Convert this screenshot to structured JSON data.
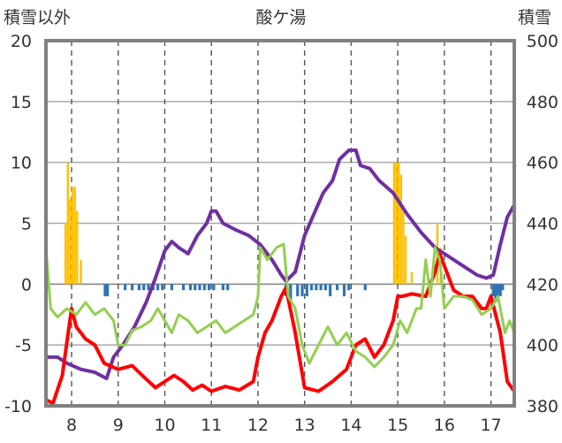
{
  "chart_data": {
    "type": "line",
    "title": "酸ケ湯",
    "y_left_label": "積雪以外",
    "y_right_label": "積雪",
    "ylim_left": [
      -10,
      20
    ],
    "ylim_right": [
      380,
      500
    ],
    "xlim": [
      7.45,
      17.5
    ],
    "x_ticks": [
      8,
      9,
      10,
      11,
      12,
      13,
      14,
      15,
      16,
      17
    ],
    "y_ticks_left": [
      -10,
      -5,
      0,
      5,
      10,
      15,
      20
    ],
    "y_ticks_right": [
      380,
      400,
      420,
      440,
      460,
      480,
      500
    ],
    "grid": "dashed vertical lines at each day, solid horizontal lines",
    "colors": {
      "snow_depth": "#7030A0",
      "temperature_a": "#FF0000",
      "temperature_b": "#92D050",
      "precipitation": "#FFC000",
      "negative_bars": "#2E75B6",
      "grid": "#AAAAAA",
      "frame": "#808080"
    },
    "series": [
      {
        "key": "snow_depth",
        "axis": "right",
        "style": "line",
        "points": [
          [
            7.45,
            396
          ],
          [
            7.7,
            396
          ],
          [
            7.9,
            394
          ],
          [
            8.2,
            392
          ],
          [
            8.5,
            391
          ],
          [
            8.75,
            389
          ],
          [
            8.9,
            396
          ],
          [
            9.1,
            400
          ],
          [
            9.35,
            406
          ],
          [
            9.6,
            414
          ],
          [
            9.8,
            422
          ],
          [
            10.0,
            431
          ],
          [
            10.15,
            434
          ],
          [
            10.3,
            432
          ],
          [
            10.5,
            430
          ],
          [
            10.7,
            436
          ],
          [
            10.9,
            440
          ],
          [
            11.0,
            444
          ],
          [
            11.1,
            444
          ],
          [
            11.25,
            440
          ],
          [
            11.5,
            438
          ],
          [
            11.8,
            436
          ],
          [
            12.05,
            433
          ],
          [
            12.3,
            428
          ],
          [
            12.5,
            423
          ],
          [
            12.6,
            421
          ],
          [
            12.8,
            424
          ],
          [
            13.0,
            436
          ],
          [
            13.2,
            443
          ],
          [
            13.4,
            450
          ],
          [
            13.6,
            454
          ],
          [
            13.75,
            461
          ],
          [
            13.95,
            464
          ],
          [
            14.1,
            464
          ],
          [
            14.2,
            459
          ],
          [
            14.4,
            458
          ],
          [
            14.6,
            454
          ],
          [
            14.9,
            450
          ],
          [
            15.2,
            443
          ],
          [
            15.5,
            437
          ],
          [
            15.8,
            432
          ],
          [
            16.1,
            429
          ],
          [
            16.4,
            426
          ],
          [
            16.7,
            423
          ],
          [
            16.9,
            422
          ],
          [
            17.05,
            423
          ],
          [
            17.2,
            433
          ],
          [
            17.35,
            442
          ],
          [
            17.5,
            446
          ]
        ]
      },
      {
        "key": "temperature_a",
        "axis": "left",
        "style": "line",
        "points": [
          [
            7.45,
            -9.5
          ],
          [
            7.6,
            -9.8
          ],
          [
            7.8,
            -7.5
          ],
          [
            8.0,
            -2
          ],
          [
            8.1,
            -3.5
          ],
          [
            8.3,
            -4.5
          ],
          [
            8.5,
            -5
          ],
          [
            8.7,
            -6.5
          ],
          [
            9.0,
            -7
          ],
          [
            9.3,
            -6.7
          ],
          [
            9.6,
            -7.8
          ],
          [
            9.8,
            -8.5
          ],
          [
            10.0,
            -8
          ],
          [
            10.2,
            -7.5
          ],
          [
            10.4,
            -8
          ],
          [
            10.6,
            -8.7
          ],
          [
            10.8,
            -8.3
          ],
          [
            11.0,
            -8.8
          ],
          [
            11.3,
            -8.4
          ],
          [
            11.6,
            -8.7
          ],
          [
            11.9,
            -8
          ],
          [
            12.0,
            -6
          ],
          [
            12.15,
            -4
          ],
          [
            12.3,
            -3
          ],
          [
            12.5,
            -1
          ],
          [
            12.6,
            -0.3
          ],
          [
            12.8,
            -4
          ],
          [
            13.0,
            -8.5
          ],
          [
            13.3,
            -8.8
          ],
          [
            13.6,
            -8
          ],
          [
            13.9,
            -7
          ],
          [
            14.1,
            -5
          ],
          [
            14.3,
            -4.5
          ],
          [
            14.5,
            -6
          ],
          [
            14.7,
            -5
          ],
          [
            14.9,
            -3
          ],
          [
            15.0,
            -1
          ],
          [
            15.1,
            -1
          ],
          [
            15.3,
            -0.8
          ],
          [
            15.6,
            -1
          ],
          [
            15.8,
            1
          ],
          [
            15.9,
            2.5
          ],
          [
            16.0,
            1.5
          ],
          [
            16.2,
            -0.5
          ],
          [
            16.4,
            -1
          ],
          [
            16.6,
            -1
          ],
          [
            16.8,
            -2
          ],
          [
            16.9,
            -2
          ],
          [
            17.0,
            -1
          ],
          [
            17.2,
            -4
          ],
          [
            17.35,
            -8
          ],
          [
            17.5,
            -8.8
          ]
        ]
      },
      {
        "key": "temperature_b",
        "axis": "left",
        "style": "line",
        "points": [
          [
            7.45,
            3
          ],
          [
            7.55,
            -2
          ],
          [
            7.7,
            -2.7
          ],
          [
            7.9,
            -2
          ],
          [
            8.1,
            -2.5
          ],
          [
            8.3,
            -1.5
          ],
          [
            8.5,
            -2.5
          ],
          [
            8.7,
            -2
          ],
          [
            8.9,
            -3
          ],
          [
            9.0,
            -5
          ],
          [
            9.15,
            -5
          ],
          [
            9.3,
            -3.8
          ],
          [
            9.5,
            -3.5
          ],
          [
            9.7,
            -3
          ],
          [
            9.85,
            -2
          ],
          [
            10.0,
            -3
          ],
          [
            10.15,
            -4
          ],
          [
            10.3,
            -2.5
          ],
          [
            10.5,
            -3
          ],
          [
            10.7,
            -4
          ],
          [
            10.9,
            -3.5
          ],
          [
            11.1,
            -3
          ],
          [
            11.3,
            -4
          ],
          [
            11.5,
            -3.5
          ],
          [
            11.7,
            -3
          ],
          [
            11.9,
            -2.5
          ],
          [
            12.0,
            -1
          ],
          [
            12.05,
            3
          ],
          [
            12.2,
            2
          ],
          [
            12.4,
            3
          ],
          [
            12.55,
            3.3
          ],
          [
            12.65,
            -1
          ],
          [
            12.8,
            -2
          ],
          [
            12.95,
            -5
          ],
          [
            13.1,
            -6.5
          ],
          [
            13.3,
            -5
          ],
          [
            13.5,
            -3.5
          ],
          [
            13.7,
            -5
          ],
          [
            13.9,
            -4
          ],
          [
            14.1,
            -5.5
          ],
          [
            14.3,
            -6
          ],
          [
            14.5,
            -6.8
          ],
          [
            14.7,
            -6
          ],
          [
            14.9,
            -5
          ],
          [
            15.05,
            -3
          ],
          [
            15.2,
            -4
          ],
          [
            15.4,
            -2
          ],
          [
            15.5,
            -2
          ],
          [
            15.6,
            2
          ],
          [
            15.7,
            -1
          ],
          [
            15.8,
            3
          ],
          [
            15.9,
            2
          ],
          [
            16.0,
            -2
          ],
          [
            16.2,
            -1
          ],
          [
            16.4,
            -1
          ],
          [
            16.6,
            -1.3
          ],
          [
            16.8,
            -2.5
          ],
          [
            17.0,
            -2
          ],
          [
            17.15,
            -1
          ],
          [
            17.3,
            -4
          ],
          [
            17.4,
            -3
          ],
          [
            17.5,
            -4
          ]
        ]
      }
    ],
    "bars_positive": {
      "key": "precipitation",
      "axis": "left",
      "x": [
        7.87,
        7.92,
        7.97,
        8.02,
        8.07,
        8.12,
        8.2,
        14.92,
        14.97,
        15.02,
        15.07,
        15.12,
        15.17,
        15.3,
        15.85,
        15.92
      ],
      "values": [
        5,
        10,
        7,
        8,
        8,
        6,
        2,
        10,
        10,
        10,
        9,
        6,
        4,
        1,
        5,
        3
      ]
    },
    "bars_negative": {
      "key": "negative_bars",
      "axis": "left",
      "x": [
        8.72,
        8.77,
        9.15,
        9.3,
        9.45,
        9.55,
        9.65,
        9.75,
        9.85,
        9.95,
        10.15,
        10.4,
        10.55,
        10.65,
        10.75,
        10.85,
        10.95,
        11.05,
        11.25,
        11.35,
        12.6,
        12.7,
        12.85,
        12.95,
        13.05,
        13.15,
        13.25,
        13.35,
        13.45,
        13.55,
        13.7,
        13.85,
        13.95,
        14.3,
        17.05,
        17.1,
        17.15,
        17.2,
        17.25
      ],
      "values": [
        -1,
        -1,
        -0.5,
        -0.5,
        -0.5,
        -0.5,
        -0.5,
        -0.5,
        -0.5,
        -0.5,
        -0.5,
        -0.5,
        -0.5,
        -0.5,
        -0.5,
        -0.5,
        -0.5,
        -0.5,
        -0.5,
        -0.5,
        -1,
        -1.5,
        -1,
        -1,
        -1,
        -0.5,
        -0.5,
        -0.5,
        -0.5,
        -1,
        -0.5,
        -1,
        -0.5,
        -0.5,
        -1,
        -1.5,
        -1,
        -1,
        -0.5
      ]
    }
  }
}
